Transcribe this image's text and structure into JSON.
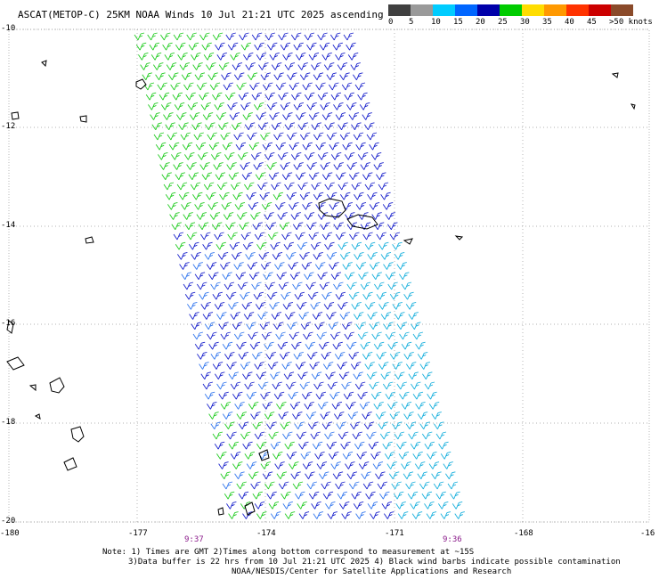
{
  "header": {
    "title": "ASCAT(METOP-C) 25KM NOAA Winds 10 Jul 21:21 UTC 2025 ascending"
  },
  "legend": {
    "colors": [
      "#404040",
      "#9a9a9a",
      "#00ccff",
      "#0066ff",
      "#0000aa",
      "#00cc00",
      "#ffdd00",
      "#ff9900",
      "#ff3300",
      "#cc0000",
      "#8a4a2a",
      "#ff00ff",
      "#9933cc",
      "#5500aa"
    ],
    "labels": [
      "0",
      "5",
      "10",
      "15",
      "20",
      "25",
      "30",
      "35",
      "40",
      "45",
      ">50 knots"
    ]
  },
  "map": {
    "lat_labels": [
      "-10",
      "-12",
      "-14",
      "-16",
      "-18",
      "-20"
    ],
    "lon_labels": [
      "-180",
      "-177",
      "-174",
      "-171",
      "-168",
      "-16"
    ],
    "time_labels": [
      "9:37",
      "9:36"
    ]
  },
  "notes": {
    "line1": "Note: 1) Times are GMT 2)Times along bottom correspond to measurement at ~15S",
    "line2": "3)Data buffer is 22 hrs from 10 Jul 21:21 UTC 2025 4) Black wind barbs indicate possible contamination",
    "line3": "NOAA/NESDIS/Center for Satellite Applications and Research"
  }
}
